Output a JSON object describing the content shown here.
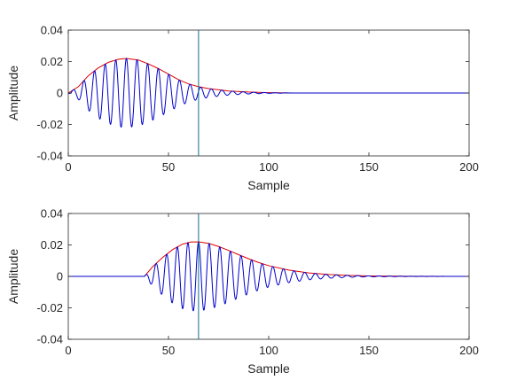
{
  "chart_data": [
    {
      "type": "line",
      "xlabel": "Sample",
      "ylabel": "Amplitude",
      "xlim": [
        0,
        200
      ],
      "ylim": [
        -0.04,
        0.04
      ],
      "xticks": [
        0,
        50,
        100,
        150,
        200
      ],
      "yticks": [
        -0.04,
        -0.02,
        0,
        0.02,
        0.04
      ],
      "xtick_labels": [
        "0",
        "50",
        "100",
        "150",
        "200"
      ],
      "ytick_labels": [
        "-0.04",
        "-0.02",
        "0",
        "0.02",
        "0.04"
      ],
      "vertical_line_x": 65,
      "series": [
        {
          "role": "signal",
          "color": "#0000cc",
          "signal_start": 0,
          "peak_x": 29,
          "peak_amplitude": 0.022,
          "period": 5.3,
          "end_x": 113
        },
        {
          "role": "envelope",
          "color": "#dd0000",
          "points": [
            [
              0,
              0
            ],
            [
              5,
              0.004
            ],
            [
              10,
              0.011
            ],
            [
              15,
              0.016
            ],
            [
              20,
              0.0195
            ],
            [
              25,
              0.0215
            ],
            [
              29,
              0.022
            ],
            [
              35,
              0.021
            ],
            [
              40,
              0.0185
            ],
            [
              45,
              0.0155
            ],
            [
              50,
              0.012
            ],
            [
              55,
              0.0085
            ],
            [
              60,
              0.0058
            ],
            [
              65,
              0.004
            ],
            [
              70,
              0.0028
            ],
            [
              80,
              0.0013
            ],
            [
              90,
              0.0006
            ],
            [
              100,
              0.0002
            ],
            [
              113,
              0
            ],
            [
              200,
              0
            ]
          ]
        }
      ],
      "grid": false
    },
    {
      "type": "line",
      "xlabel": "Sample",
      "ylabel": "Amplitude",
      "xlim": [
        0,
        200
      ],
      "ylim": [
        -0.04,
        0.04
      ],
      "xticks": [
        0,
        50,
        100,
        150,
        200
      ],
      "yticks": [
        -0.04,
        -0.02,
        0,
        0.02,
        0.04
      ],
      "xtick_labels": [
        "0",
        "50",
        "100",
        "150",
        "200"
      ],
      "ytick_labels": [
        "-0.04",
        "-0.02",
        "0",
        "0.02",
        "0.04"
      ],
      "vertical_line_x": 65,
      "series": [
        {
          "role": "signal",
          "color": "#0000cc",
          "signal_start": 38,
          "peak_x": 65,
          "peak_amplitude": 0.022,
          "period": 5.3,
          "end_x": 200
        },
        {
          "role": "envelope",
          "color": "#dd0000",
          "points": [
            [
              0,
              0
            ],
            [
              38,
              0
            ],
            [
              42,
              0.006
            ],
            [
              47,
              0.012
            ],
            [
              52,
              0.017
            ],
            [
              57,
              0.0205
            ],
            [
              61,
              0.0218
            ],
            [
              65,
              0.022
            ],
            [
              70,
              0.021
            ],
            [
              75,
              0.019
            ],
            [
              80,
              0.0165
            ],
            [
              85,
              0.0138
            ],
            [
              90,
              0.0112
            ],
            [
              95,
              0.0088
            ],
            [
              100,
              0.0068
            ],
            [
              110,
              0.004
            ],
            [
              120,
              0.0022
            ],
            [
              130,
              0.0012
            ],
            [
              140,
              0.0006
            ],
            [
              150,
              0.0003
            ],
            [
              170,
              0.0001
            ],
            [
              200,
              0
            ]
          ]
        }
      ],
      "grid": false
    }
  ]
}
